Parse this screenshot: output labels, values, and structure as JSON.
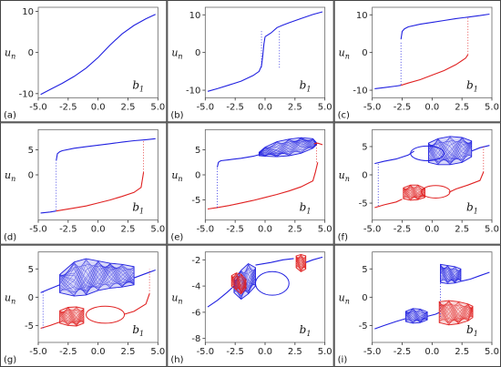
{
  "chart_data": [
    {
      "panel_label": "(a)",
      "type": "line",
      "ylabel": "u",
      "ylabel_sub": "n",
      "annotation": "b",
      "annotation_sub": "1",
      "xlim": [
        -5.0,
        5.0
      ],
      "ylim": [
        -11,
        11
      ],
      "xticks": [
        "-5.0",
        "-2.5",
        "0.0",
        "2.5",
        "5.0"
      ],
      "yticks": [
        -10,
        0,
        10
      ],
      "series": [
        {
          "color": "#2020e0",
          "kind": "line",
          "x": [
            -4.8,
            -4,
            -3,
            -2,
            -1,
            0,
            1,
            2,
            3,
            4,
            4.8
          ],
          "y": [
            -10.2,
            -9,
            -7.5,
            -5.8,
            -3.8,
            -1.2,
            1.8,
            4.5,
            6.6,
            8.2,
            9.3
          ]
        }
      ]
    },
    {
      "panel_label": "(b)",
      "type": "line",
      "ylabel": "u",
      "ylabel_sub": "n",
      "annotation": "b",
      "annotation_sub": "1",
      "xlim": [
        -5.0,
        5.0
      ],
      "ylim": [
        -12,
        12
      ],
      "xticks": [
        "-5.0",
        "-2.5",
        "0.0",
        "2.5",
        "5.0"
      ],
      "yticks": [
        -10,
        0,
        10
      ],
      "series": [
        {
          "color": "#2020e0",
          "kind": "line",
          "x": [
            -4.8,
            -4,
            -3,
            -2,
            -1,
            -0.5,
            -0.3,
            -0.2,
            -0.1,
            0
          ],
          "y": [
            -10.3,
            -9.6,
            -8.6,
            -7.6,
            -6.1,
            -5.0,
            -3.5,
            -1.0,
            2.2,
            4.2
          ]
        },
        {
          "color": "#2020e0",
          "kind": "line",
          "x": [
            0,
            0.5,
            1,
            1.5,
            2,
            3,
            4,
            4.8
          ],
          "y": [
            4.2,
            5.2,
            6.6,
            7.3,
            7.9,
            9.0,
            10.1,
            10.8
          ]
        },
        {
          "color": "#2020e0",
          "kind": "vline",
          "x": -0.3,
          "y": [
            -4,
            6
          ]
        },
        {
          "color": "#2020e0",
          "kind": "vline",
          "x": 1.2,
          "y": [
            -4,
            6
          ]
        }
      ]
    },
    {
      "panel_label": "(c)",
      "type": "line",
      "ylabel": "u",
      "ylabel_sub": "n",
      "annotation": "b",
      "annotation_sub": "1",
      "xlim": [
        -5.0,
        5.0
      ],
      "ylim": [
        -12,
        12
      ],
      "xticks": [
        "-5.0",
        "-2.5",
        "0.0",
        "2.5",
        "5.0"
      ],
      "yticks": [
        -10,
        0,
        10
      ],
      "series": [
        {
          "color": "#2020e0",
          "kind": "line",
          "x": [
            -2.6,
            -2.5,
            -2.3,
            -2,
            -1,
            0,
            1,
            2,
            3,
            4,
            4.8
          ],
          "y": [
            3.5,
            5.6,
            6.3,
            6.8,
            7.5,
            8.0,
            8.5,
            9.0,
            9.4,
            9.8,
            10.2
          ]
        },
        {
          "color": "#2020e0",
          "kind": "line",
          "x": [
            -4.8,
            -4,
            -3,
            -2.6
          ],
          "y": [
            -9.6,
            -9.3,
            -8.9,
            -8.7
          ]
        },
        {
          "color": "#e02020",
          "kind": "line",
          "x": [
            -2.6,
            -2,
            -1,
            0,
            1,
            2,
            2.8,
            3.0
          ],
          "y": [
            -8.7,
            -8.1,
            -7.2,
            -6.0,
            -4.8,
            -3.2,
            -1.5,
            -0.6
          ]
        },
        {
          "color": "#2020e0",
          "kind": "vline",
          "x": -2.6,
          "y": [
            -8.5,
            3
          ]
        },
        {
          "color": "#e02020",
          "kind": "vline",
          "x": 3.0,
          "y": [
            -0.5,
            9.5
          ]
        }
      ]
    },
    {
      "panel_label": "(d)",
      "type": "line",
      "ylabel": "u",
      "ylabel_sub": "n",
      "annotation": "b",
      "annotation_sub": "1",
      "xlim": [
        -5.0,
        5.0
      ],
      "ylim": [
        -9,
        9
      ],
      "xticks": [
        "-5.0",
        "-2.5",
        "0.0",
        "2.5",
        "5.0"
      ],
      "yticks": [
        0,
        5
      ],
      "series": [
        {
          "color": "#2020e0",
          "kind": "line",
          "x": [
            -3.5,
            -3.4,
            -3.2,
            -3,
            -2,
            -1,
            0,
            1,
            2,
            3,
            4,
            4.8
          ],
          "y": [
            2.8,
            4.2,
            4.6,
            4.8,
            5.3,
            5.6,
            5.9,
            6.2,
            6.5,
            6.8,
            7.0,
            7.2
          ]
        },
        {
          "color": "#2020e0",
          "kind": "line",
          "x": [
            -4.8,
            -4,
            -3.5
          ],
          "y": [
            -7.6,
            -7.4,
            -7.2
          ]
        },
        {
          "color": "#e02020",
          "kind": "line",
          "x": [
            -3.5,
            -2,
            -1,
            0,
            1,
            2,
            3,
            3.6,
            3.8
          ],
          "y": [
            -7.2,
            -6.6,
            -6.2,
            -5.6,
            -5.0,
            -4.3,
            -3.5,
            -2.5,
            0.5
          ]
        },
        {
          "color": "#e02020",
          "kind": "vline",
          "x": 3.8,
          "y": [
            0.5,
            7
          ]
        },
        {
          "color": "#2020e0",
          "kind": "vline",
          "x": -3.5,
          "y": [
            -7,
            2.5
          ]
        }
      ]
    },
    {
      "panel_label": "(e)",
      "type": "line",
      "ylabel": "u",
      "ylabel_sub": "n",
      "annotation": "b",
      "annotation_sub": "1",
      "xlim": [
        -5.0,
        5.0
      ],
      "ylim": [
        -9,
        9
      ],
      "xticks": [
        "-5.0",
        "-2.5",
        "0.0",
        "2.5",
        "5.0"
      ],
      "yticks": [
        -5,
        0,
        5
      ],
      "series": [
        {
          "color": "#2020e0",
          "kind": "line",
          "x": [
            -4,
            -3.9,
            -3.7,
            -3,
            -2,
            -1,
            -0.5
          ],
          "y": [
            1.5,
            2.5,
            2.8,
            3.0,
            3.3,
            3.7,
            4.0
          ]
        },
        {
          "color": "#2020e0",
          "kind": "band",
          "x": [
            -0.5,
            0,
            1,
            2,
            3,
            4,
            4.3
          ],
          "top": [
            4.5,
            5.5,
            6.6,
            7.1,
            7.4,
            7.2,
            6.4
          ],
          "bottom": [
            3.8,
            3.7,
            3.6,
            3.8,
            4.3,
            5.3,
            6.0
          ]
        },
        {
          "color": "#e02020",
          "kind": "line",
          "x": [
            4.1,
            4.4,
            4.8
          ],
          "y": [
            6.2,
            6.3,
            6.0
          ]
        },
        {
          "color": "#e02020",
          "kind": "line",
          "x": [
            -4.8,
            -4,
            -3,
            -2,
            -1,
            0,
            1,
            2,
            3,
            4,
            4.2,
            4.4
          ],
          "y": [
            -6.8,
            -6.5,
            -6.1,
            -5.6,
            -5.1,
            -4.5,
            -3.9,
            -3.2,
            -2.4,
            -1.2,
            0.5,
            2.5
          ]
        },
        {
          "color": "#2020e0",
          "kind": "vline",
          "x": -4.0,
          "y": [
            -6.5,
            1.5
          ]
        },
        {
          "color": "#e02020",
          "kind": "vline",
          "x": 4.3,
          "y": [
            2.5,
            6.5
          ]
        }
      ]
    },
    {
      "panel_label": "(f)",
      "type": "line",
      "ylabel": "u",
      "ylabel_sub": "n",
      "annotation": "b",
      "annotation_sub": "1",
      "xlim": [
        -5.0,
        5.0
      ],
      "ylim": [
        -8,
        8
      ],
      "xticks": [
        "-5.0",
        "-2.5",
        "0.0",
        "2.5",
        "5.0"
      ],
      "yticks": [
        -5,
        0,
        5
      ],
      "series": [
        {
          "color": "#2020e0",
          "kind": "line",
          "x": [
            -4.8,
            -4,
            -3,
            -2,
            -1.5
          ],
          "y": [
            2.0,
            2.4,
            2.8,
            3.5,
            4.2
          ]
        },
        {
          "color": "#2020e0",
          "kind": "loop",
          "cx": -0.4,
          "cy": 3.8,
          "rx": 1.4,
          "ry": 1.3
        },
        {
          "color": "#2020e0",
          "kind": "band",
          "x": [
            -0.3,
            0.5,
            1.5,
            2.5,
            3.3
          ],
          "top": [
            5.6,
            6.4,
            6.8,
            6.6,
            6.0
          ],
          "bottom": [
            2.2,
            1.8,
            1.8,
            2.2,
            3.2
          ]
        },
        {
          "color": "#2020e0",
          "kind": "line",
          "x": [
            3.3,
            4,
            4.8
          ],
          "y": [
            4.2,
            4.8,
            5.2
          ]
        },
        {
          "color": "#e02020",
          "kind": "line",
          "x": [
            -4.8,
            -4,
            -3,
            -2.5
          ],
          "y": [
            -5.8,
            -5.3,
            -4.8,
            -4.3
          ]
        },
        {
          "color": "#e02020",
          "kind": "band",
          "x": [
            -2.4,
            -1.8,
            -1.2,
            -0.6
          ],
          "top": [
            -2.3,
            -1.8,
            -1.8,
            -2.4
          ],
          "bottom": [
            -4.2,
            -4.5,
            -4.4,
            -4.0
          ]
        },
        {
          "color": "#e02020",
          "kind": "loop",
          "cx": 0.3,
          "cy": -3.0,
          "rx": 1.2,
          "ry": 1.1
        },
        {
          "color": "#e02020",
          "kind": "line",
          "x": [
            1.4,
            2,
            3,
            4,
            4.3
          ],
          "y": [
            -3.1,
            -2.5,
            -1.8,
            -1.0,
            0.5
          ]
        },
        {
          "color": "#2020e0",
          "kind": "vline",
          "x": -4.5,
          "y": [
            -5.5,
            2
          ]
        },
        {
          "color": "#e02020",
          "kind": "vline",
          "x": 4.3,
          "y": [
            0.5,
            5
          ]
        }
      ]
    },
    {
      "panel_label": "(g)",
      "type": "line",
      "ylabel": "u",
      "ylabel_sub": "n",
      "annotation": "b",
      "annotation_sub": "1",
      "xlim": [
        -5.0,
        5.0
      ],
      "ylim": [
        -8,
        8
      ],
      "xticks": [
        "-5.0",
        "-2.5",
        "0.0",
        "2.5",
        "5.0"
      ],
      "yticks": [
        -5,
        0,
        5
      ],
      "series": [
        {
          "color": "#2020e0",
          "kind": "line",
          "x": [
            -4.8,
            -4,
            -3.2
          ],
          "y": [
            0.8,
            1.5,
            2.2
          ]
        },
        {
          "color": "#2020e0",
          "kind": "band",
          "x": [
            -3.2,
            -2,
            -1,
            0,
            1,
            2,
            3
          ],
          "top": [
            4.0,
            6.2,
            6.8,
            6.4,
            6.0,
            5.8,
            5.4
          ],
          "bottom": [
            0.8,
            0.2,
            0.4,
            1.2,
            1.6,
            1.8,
            2.2
          ]
        },
        {
          "color": "#2020e0",
          "kind": "line",
          "x": [
            3,
            4,
            4.8
          ],
          "y": [
            3.4,
            4.2,
            4.8
          ]
        },
        {
          "color": "#e02020",
          "kind": "line",
          "x": [
            -4.8,
            -4,
            -3.2
          ],
          "y": [
            -5.5,
            -5.0,
            -4.4
          ]
        },
        {
          "color": "#e02020",
          "kind": "band",
          "x": [
            -3.2,
            -2.5,
            -1.8,
            -1.2
          ],
          "top": [
            -2.4,
            -1.8,
            -1.7,
            -2.0
          ],
          "bottom": [
            -4.6,
            -5.0,
            -5.1,
            -4.6
          ]
        },
        {
          "color": "#e02020",
          "kind": "loop",
          "cx": 0.6,
          "cy": -3.1,
          "rx": 1.6,
          "ry": 1.5
        },
        {
          "color": "#e02020",
          "kind": "line",
          "x": [
            2.2,
            3,
            4,
            4.3
          ],
          "y": [
            -3.0,
            -2.5,
            -1.2,
            0.6
          ]
        },
        {
          "color": "#e02020",
          "kind": "vline",
          "x": 4.3,
          "y": [
            0.6,
            5
          ]
        },
        {
          "color": "#2020e0",
          "kind": "vline",
          "x": -4.6,
          "y": [
            -5.5,
            1.0
          ]
        }
      ]
    },
    {
      "panel_label": "(h)",
      "type": "line",
      "ylabel": "u",
      "ylabel_sub": "n",
      "annotation": "b",
      "annotation_sub": "1",
      "xlim": [
        -5.0,
        5.0
      ],
      "ylim": [
        -8.3,
        -1.4
      ],
      "xticks": [
        "-5.0",
        "-2.5",
        "0.0",
        "2.5",
        "5.0"
      ],
      "yticks": [
        -8,
        -6,
        -4,
        -2
      ],
      "series": [
        {
          "color": "#2020e0",
          "kind": "line",
          "x": [
            -4.8,
            -4,
            -3.2,
            -2.6
          ],
          "y": [
            -5.6,
            -5.1,
            -4.5,
            -4.0
          ]
        },
        {
          "color": "#2020e0",
          "kind": "band",
          "x": [
            -2.6,
            -2,
            -1.4,
            -0.8
          ],
          "top": [
            -3.5,
            -2.8,
            -2.3,
            -2.6
          ],
          "bottom": [
            -4.5,
            -5.0,
            -4.6,
            -4.0
          ]
        },
        {
          "color": "#2020e0",
          "kind": "loop",
          "cx": 0.6,
          "cy": -3.8,
          "rx": 1.4,
          "ry": 0.9
        },
        {
          "color": "#2020e0",
          "kind": "line",
          "x": [
            -0.8,
            0.5,
            1.5,
            2.4
          ],
          "y": [
            -2.4,
            -2.2,
            -2.0,
            -1.9
          ]
        },
        {
          "color": "#e02020",
          "kind": "band",
          "x": [
            -2.8,
            -2.4,
            -2.0,
            -1.6
          ],
          "top": [
            -3.2,
            -3.0,
            -3.1,
            -3.5
          ],
          "bottom": [
            -4.0,
            -4.3,
            -4.6,
            -4.2
          ]
        },
        {
          "color": "#e02020",
          "kind": "band",
          "x": [
            2.6,
            3.0,
            3.4
          ],
          "top": [
            -1.7,
            -1.6,
            -1.7
          ],
          "bottom": [
            -2.6,
            -2.9,
            -2.7
          ]
        },
        {
          "color": "#2020e0",
          "kind": "line",
          "x": [
            3.4,
            4,
            4.8
          ],
          "y": [
            -2.2,
            -2.0,
            -1.8
          ]
        }
      ]
    },
    {
      "panel_label": "(i)",
      "type": "line",
      "ylabel": "u",
      "ylabel_sub": "n",
      "annotation": "b",
      "annotation_sub": "1",
      "xlim": [
        -5.0,
        5.0
      ],
      "ylim": [
        -8,
        8
      ],
      "xticks": [
        "-5.0",
        "-2.5",
        "0.0",
        "2.5",
        "5.0"
      ],
      "yticks": [
        -5,
        0,
        5
      ],
      "series": [
        {
          "color": "#2020e0",
          "kind": "line",
          "x": [
            -4.8,
            -4,
            -3,
            -2.2
          ],
          "y": [
            -5.6,
            -5.0,
            -4.3,
            -3.8
          ]
        },
        {
          "color": "#2020e0",
          "kind": "band",
          "x": [
            -2.2,
            -1.6,
            -1.0,
            -0.4
          ],
          "top": [
            -2.5,
            -2.0,
            -2.1,
            -2.6
          ],
          "bottom": [
            -4.3,
            -4.6,
            -4.5,
            -4.0
          ]
        },
        {
          "color": "#2020e0",
          "kind": "line",
          "x": [
            -0.4,
            0.3,
            0.6
          ],
          "y": [
            -3.4,
            -3.0,
            -2.7
          ]
        },
        {
          "color": "#2020e0",
          "kind": "vline",
          "x": 0.7,
          "y": [
            -3.5,
            5.5
          ]
        },
        {
          "color": "#2020e0",
          "kind": "band",
          "x": [
            0.7,
            1.3,
            1.9,
            2.4
          ],
          "top": [
            5.8,
            5.6,
            5.4,
            5.0
          ],
          "bottom": [
            2.6,
            2.4,
            2.5,
            2.8
          ]
        },
        {
          "color": "#e02020",
          "kind": "band",
          "x": [
            0.6,
            1.4,
            2.2,
            3.0,
            3.4
          ],
          "top": [
            -0.8,
            -0.6,
            -0.8,
            -1.2,
            -1.6
          ],
          "bottom": [
            -4.5,
            -4.9,
            -4.7,
            -4.2,
            -3.6
          ]
        },
        {
          "color": "#2020e0",
          "kind": "line",
          "x": [
            2.4,
            3.2,
            4,
            4.8
          ],
          "y": [
            2.8,
            3.2,
            3.8,
            4.4
          ]
        }
      ]
    }
  ]
}
